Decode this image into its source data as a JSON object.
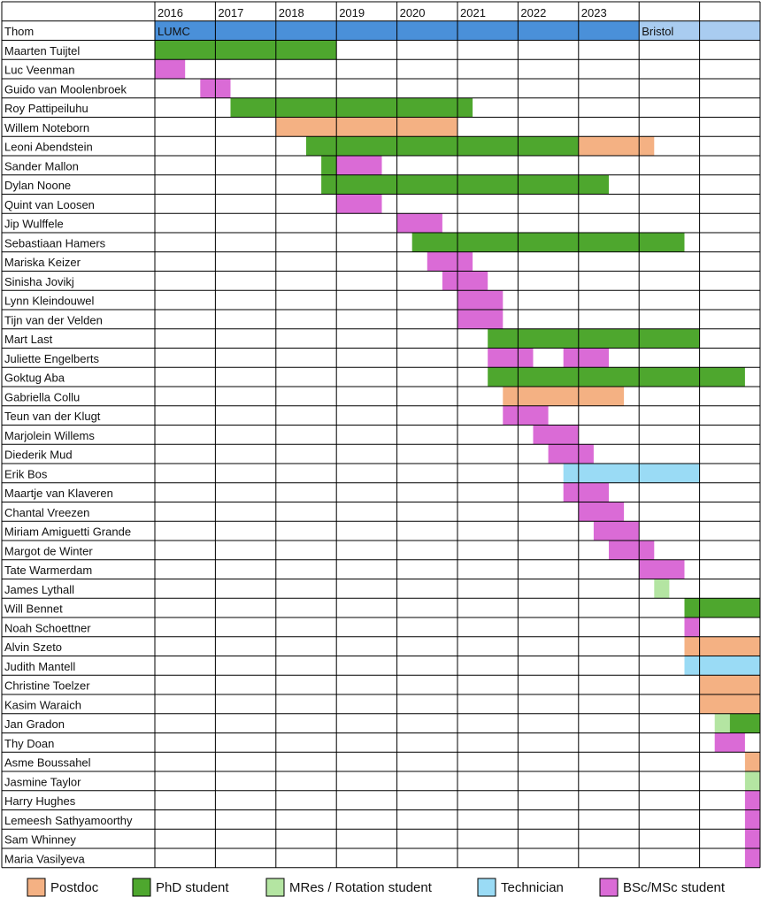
{
  "chart_data": {
    "type": "gantt-table",
    "years": [
      "2016",
      "2017",
      "2018",
      "2019",
      "2020",
      "2021",
      "2022",
      "2023",
      "",
      ""
    ],
    "colors": {
      "postdoc": "#F4B183",
      "phd": "#4EA72E",
      "mres": "#B4E5A2",
      "tech": "#9ADBF5",
      "bsc": "#DA6BD6",
      "lumc": "#4A90D9",
      "bristol": "#A9CCF0"
    },
    "legend": [
      {
        "key": "postdoc",
        "label": "Postdoc"
      },
      {
        "key": "phd",
        "label": "PhD student"
      },
      {
        "key": "mres",
        "label": "MRes / Rotation student"
      },
      {
        "key": "tech",
        "label": "Technician"
      },
      {
        "key": "bsc",
        "label": "BSc/MSc student"
      }
    ],
    "rows": [
      {
        "name": "Thom",
        "segments": [
          {
            "type": "lumc",
            "start": 2016.0,
            "end": 2024.0,
            "label": "LUMC"
          },
          {
            "type": "bristol",
            "start": 2024.0,
            "end": 2026.0,
            "label": "Bristol"
          }
        ]
      },
      {
        "name": "Maarten Tuijtel",
        "segments": [
          {
            "type": "phd",
            "start": 2016.0,
            "end": 2019.0
          }
        ]
      },
      {
        "name": "Luc Veenman",
        "segments": [
          {
            "type": "bsc",
            "start": 2016.0,
            "end": 2016.5
          }
        ]
      },
      {
        "name": "Guido van Moolenbroek",
        "segments": [
          {
            "type": "bsc",
            "start": 2016.75,
            "end": 2017.25
          }
        ]
      },
      {
        "name": "Roy Pattipeiluhu",
        "segments": [
          {
            "type": "phd",
            "start": 2017.25,
            "end": 2021.25
          }
        ]
      },
      {
        "name": "Willem Noteborn",
        "segments": [
          {
            "type": "postdoc",
            "start": 2018.0,
            "end": 2021.0
          }
        ]
      },
      {
        "name": "Leoni Abendstein",
        "segments": [
          {
            "type": "phd",
            "start": 2018.5,
            "end": 2023.0
          },
          {
            "type": "postdoc",
            "start": 2023.0,
            "end": 2024.25
          }
        ]
      },
      {
        "name": "Sander Mallon",
        "segments": [
          {
            "type": "phd",
            "start": 2018.75,
            "end": 2019.0
          },
          {
            "type": "bsc",
            "start": 2019.0,
            "end": 2019.75
          }
        ]
      },
      {
        "name": "Dylan Noone",
        "segments": [
          {
            "type": "phd",
            "start": 2018.75,
            "end": 2023.5
          }
        ]
      },
      {
        "name": "Quint van Loosen",
        "segments": [
          {
            "type": "bsc",
            "start": 2019.0,
            "end": 2019.75
          }
        ]
      },
      {
        "name": "Jip Wulffele",
        "segments": [
          {
            "type": "bsc",
            "start": 2020.0,
            "end": 2020.75
          }
        ]
      },
      {
        "name": "Sebastiaan Hamers",
        "segments": [
          {
            "type": "phd",
            "start": 2020.25,
            "end": 2024.75
          }
        ]
      },
      {
        "name": "Mariska Keizer",
        "segments": [
          {
            "type": "bsc",
            "start": 2020.5,
            "end": 2021.25
          }
        ]
      },
      {
        "name": "Sinisha Jovikj",
        "segments": [
          {
            "type": "bsc",
            "start": 2020.75,
            "end": 2021.5
          }
        ]
      },
      {
        "name": "Lynn Kleindouwel",
        "segments": [
          {
            "type": "bsc",
            "start": 2021.0,
            "end": 2021.75
          }
        ]
      },
      {
        "name": "Tijn van der Velden",
        "segments": [
          {
            "type": "bsc",
            "start": 2021.0,
            "end": 2021.75
          }
        ]
      },
      {
        "name": "Mart Last",
        "segments": [
          {
            "type": "phd",
            "start": 2021.5,
            "end": 2025.0
          }
        ]
      },
      {
        "name": "Juliette Engelberts",
        "segments": [
          {
            "type": "bsc",
            "start": 2021.5,
            "end": 2022.25
          },
          {
            "type": "bsc",
            "start": 2022.75,
            "end": 2023.5
          }
        ]
      },
      {
        "name": "Goktug Aba",
        "segments": [
          {
            "type": "phd",
            "start": 2021.5,
            "end": 2025.75
          }
        ]
      },
      {
        "name": "Gabriella Collu",
        "segments": [
          {
            "type": "postdoc",
            "start": 2021.75,
            "end": 2023.75
          }
        ]
      },
      {
        "name": "Teun van der Klugt",
        "segments": [
          {
            "type": "bsc",
            "start": 2021.75,
            "end": 2022.5
          }
        ]
      },
      {
        "name": "Marjolein Willems",
        "segments": [
          {
            "type": "bsc",
            "start": 2022.25,
            "end": 2023.0
          }
        ]
      },
      {
        "name": "Diederik Mud",
        "segments": [
          {
            "type": "bsc",
            "start": 2022.5,
            "end": 2023.25
          }
        ]
      },
      {
        "name": "Erik Bos",
        "segments": [
          {
            "type": "tech",
            "start": 2022.75,
            "end": 2025.0
          }
        ]
      },
      {
        "name": "Maartje van Klaveren",
        "segments": [
          {
            "type": "bsc",
            "start": 2022.75,
            "end": 2023.5
          }
        ]
      },
      {
        "name": "Chantal Vreezen",
        "segments": [
          {
            "type": "bsc",
            "start": 2023.0,
            "end": 2023.75
          }
        ]
      },
      {
        "name": "Miriam Amiguetti Grande",
        "segments": [
          {
            "type": "bsc",
            "start": 2023.25,
            "end": 2024.0
          }
        ]
      },
      {
        "name": "Margot de Winter",
        "segments": [
          {
            "type": "bsc",
            "start": 2023.5,
            "end": 2024.25
          }
        ]
      },
      {
        "name": "Tate Warmerdam",
        "segments": [
          {
            "type": "bsc",
            "start": 2024.0,
            "end": 2024.75
          }
        ]
      },
      {
        "name": "James Lythall",
        "segments": [
          {
            "type": "mres",
            "start": 2024.25,
            "end": 2024.5
          }
        ]
      },
      {
        "name": "Will Bennet",
        "segments": [
          {
            "type": "phd",
            "start": 2024.75,
            "end": 2026.0
          }
        ]
      },
      {
        "name": "Noah Schoettner",
        "segments": [
          {
            "type": "bsc",
            "start": 2024.75,
            "end": 2025.0
          }
        ]
      },
      {
        "name": "Alvin Szeto",
        "segments": [
          {
            "type": "postdoc",
            "start": 2024.75,
            "end": 2025.0
          },
          {
            "type": "postdoc",
            "start": 2025.0,
            "end": 2026.0
          }
        ]
      },
      {
        "name": "Judith Mantell",
        "segments": [
          {
            "type": "tech",
            "start": 2024.75,
            "end": 2026.0
          }
        ]
      },
      {
        "name": "Christine Toelzer",
        "segments": [
          {
            "type": "postdoc",
            "start": 2025.0,
            "end": 2026.0
          }
        ]
      },
      {
        "name": "Kasim Waraich",
        "segments": [
          {
            "type": "postdoc",
            "start": 2025.0,
            "end": 2026.0
          }
        ]
      },
      {
        "name": "Jan Gradon",
        "segments": [
          {
            "type": "mres",
            "start": 2025.25,
            "end": 2025.5
          },
          {
            "type": "phd",
            "start": 2025.5,
            "end": 2026.0
          }
        ]
      },
      {
        "name": "Thy Doan",
        "segments": [
          {
            "type": "bsc",
            "start": 2025.25,
            "end": 2025.75
          }
        ]
      },
      {
        "name": "Asme Boussahel",
        "segments": [
          {
            "type": "postdoc",
            "start": 2025.75,
            "end": 2026.0
          }
        ]
      },
      {
        "name": "Jasmine Taylor",
        "segments": [
          {
            "type": "mres",
            "start": 2025.75,
            "end": 2026.0
          }
        ]
      },
      {
        "name": "Harry Hughes",
        "segments": [
          {
            "type": "bsc",
            "start": 2025.75,
            "end": 2026.0
          }
        ]
      },
      {
        "name": "Lemeesh Sathyamoorthy",
        "segments": [
          {
            "type": "bsc",
            "start": 2025.75,
            "end": 2026.0
          }
        ]
      },
      {
        "name": "Sam Whinney",
        "segments": [
          {
            "type": "bsc",
            "start": 2025.75,
            "end": 2026.0
          }
        ]
      },
      {
        "name": "Maria Vasilyeva",
        "segments": [
          {
            "type": "bsc",
            "start": 2025.75,
            "end": 2026.0
          }
        ]
      }
    ]
  }
}
